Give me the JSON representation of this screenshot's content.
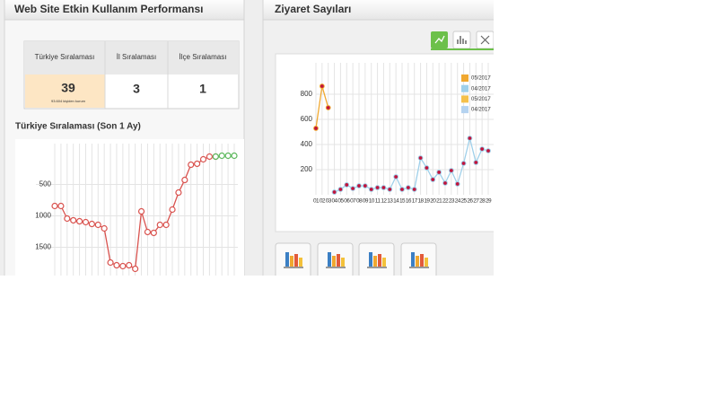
{
  "left_panel": {
    "title": "Web Site Etkin Kullanım Performansı",
    "table": {
      "headers": [
        "Türkiye Sıralaması",
        "İl Sıralaması",
        "İlçe Sıralaması"
      ],
      "values": [
        39,
        3,
        1
      ],
      "note": "93.604 kişiden kurum"
    },
    "chart": {
      "type": "line",
      "title": "Türkiye Sıralaması (Son 1 Ay)",
      "ylim": [
        -150,
        1950
      ],
      "y_inverted": true,
      "yticks": [
        500,
        1000,
        1500
      ],
      "grid": true,
      "series": [
        {
          "color": "#d9534f",
          "values": [
            843,
            843,
            1043,
            1071,
            1086,
            1100,
            1129,
            1143,
            1200,
            1743,
            1786,
            1800,
            1786,
            1843,
            929,
            1257,
            1271,
            1143,
            1143,
            900,
            629,
            429,
            186,
            171,
            100,
            57,
            57,
            null,
            null,
            null
          ]
        },
        {
          "color": "#5cb85c",
          "values": [
            null,
            null,
            null,
            null,
            null,
            null,
            null,
            null,
            null,
            null,
            null,
            null,
            null,
            null,
            null,
            null,
            null,
            null,
            null,
            null,
            null,
            null,
            null,
            null,
            null,
            null,
            57,
            43,
            43,
            43
          ]
        }
      ]
    }
  },
  "right_panel": {
    "title": "Ziyaret Sayıları",
    "chart": {
      "type": "line",
      "ylim": [
        0,
        1050
      ],
      "yticks": [
        200,
        400,
        600,
        800
      ],
      "grid": true,
      "categories": [
        "01",
        "02",
        "03",
        "04",
        "05",
        "06",
        "07",
        "08",
        "09",
        "10",
        "11",
        "12",
        "13",
        "14",
        "15",
        "16",
        "17",
        "18",
        "19",
        "20",
        "21",
        "22",
        "23",
        "24",
        "25",
        "26",
        "27",
        "28",
        "29"
      ],
      "series": [
        {
          "name": "05/2017",
          "color": "#f0a830",
          "values": [
            529,
            864,
            693,
            null,
            null,
            null,
            null,
            null,
            null,
            null,
            null,
            null,
            null,
            null,
            null,
            null,
            null,
            null,
            null,
            null,
            null,
            null,
            null,
            null,
            null,
            null,
            null,
            null,
            null
          ]
        },
        {
          "name": "04/2017",
          "color": "#9fd0ea",
          "values": [
            null,
            null,
            null,
            21,
            43,
            79,
            50,
            71,
            71,
            43,
            57,
            57,
            43,
            143,
            43,
            57,
            43,
            293,
            214,
            121,
            179,
            93,
            193,
            86,
            250,
            450,
            257,
            364,
            350
          ]
        },
        {
          "name": "05/2017",
          "color": "#f5c04a",
          "values": [
            null,
            null,
            null,
            null,
            null,
            null,
            null,
            null,
            null,
            null,
            null,
            null,
            null,
            null,
            null,
            null,
            null,
            null,
            null,
            null,
            null,
            null,
            null,
            null,
            null,
            null,
            null,
            null,
            null
          ]
        },
        {
          "name": "04/2017",
          "color": "#b5d3f0",
          "values": [
            null,
            null,
            null,
            null,
            null,
            null,
            null,
            null,
            null,
            null,
            null,
            null,
            null,
            null,
            null,
            null,
            null,
            null,
            null,
            null,
            null,
            null,
            null,
            null,
            null,
            null,
            null,
            null,
            null
          ]
        }
      ]
    }
  }
}
